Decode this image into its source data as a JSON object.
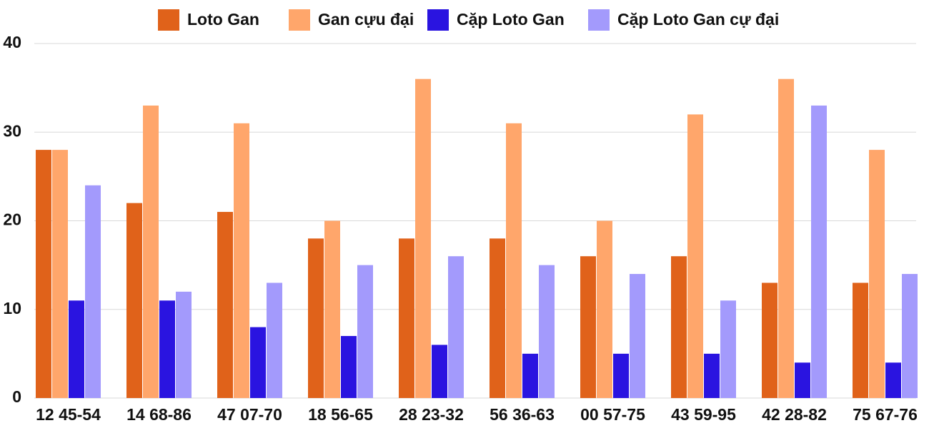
{
  "chart_data": {
    "type": "bar",
    "categories": [
      "12 45-54",
      "14 68-86",
      "47 07-70",
      "18 56-65",
      "28 23-32",
      "56 36-63",
      "00 57-75",
      "43 59-95",
      "42 28-82",
      "75 67-76"
    ],
    "series": [
      {
        "name": "Loto Gan",
        "color": "#e0621a",
        "values": [
          28,
          22,
          21,
          18,
          18,
          18,
          16,
          16,
          13,
          13
        ]
      },
      {
        "name": "Gan cựu đại",
        "color": "#ffa66b",
        "values": [
          28,
          33,
          31,
          20,
          36,
          31,
          20,
          32,
          36,
          28
        ]
      },
      {
        "name": "Cặp Loto Gan",
        "color": "#2a14e0",
        "values": [
          11,
          11,
          8,
          7,
          6,
          5,
          5,
          5,
          4,
          4
        ]
      },
      {
        "name": "Cặp Loto Gan cự đại",
        "color": "#a39afc",
        "values": [
          24,
          12,
          13,
          15,
          16,
          15,
          14,
          11,
          33,
          14
        ]
      }
    ],
    "ylim": [
      0,
      40
    ],
    "yticks": [
      0,
      10,
      20,
      30,
      40
    ],
    "grid": true,
    "legend": "top"
  }
}
